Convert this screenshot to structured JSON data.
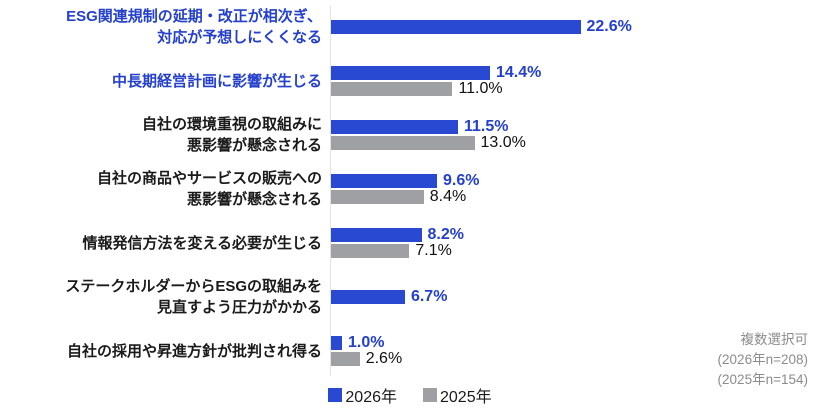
{
  "chart_data": {
    "type": "bar",
    "orientation": "horizontal",
    "title": "",
    "value_suffix": "%",
    "xmax": 25,
    "grid": false,
    "legend_position": "bottom-center",
    "categories": [
      {
        "lines": [
          "ESG関連規制の延期・改正が相次ぎ、",
          "対応が予想しにくくなる"
        ],
        "highlight": true
      },
      {
        "lines": [
          "中長期経営計画に影響が生じる"
        ],
        "highlight": true
      },
      {
        "lines": [
          "自社の環境重視の取組みに",
          "悪影響が懸念される"
        ],
        "highlight": false
      },
      {
        "lines": [
          "自社の商品やサービスの販売への",
          "悪影響が懸念される"
        ],
        "highlight": false
      },
      {
        "lines": [
          "情報発信方法を変える必要が生じる"
        ],
        "highlight": false
      },
      {
        "lines": [
          "ステークホルダーからESGの取組みを",
          "見直すよう圧力がかかる"
        ],
        "highlight": false
      },
      {
        "lines": [
          "自社の採用や昇進方針が批判され得る"
        ],
        "highlight": false
      }
    ],
    "series": [
      {
        "name": "2026年",
        "color": "#2A49D2",
        "values": [
          22.6,
          14.4,
          11.5,
          9.6,
          8.2,
          6.7,
          1.0
        ],
        "value_labels": [
          "22.6%",
          "14.4%",
          "11.5%",
          "9.6%",
          "8.2%",
          "6.7%",
          "1.0%"
        ]
      },
      {
        "name": "2025年",
        "color": "#9FA0A4",
        "values": [
          null,
          11.0,
          13.0,
          8.4,
          7.1,
          null,
          2.6
        ],
        "value_labels": [
          null,
          "11.0%",
          "13.0%",
          "8.4%",
          "7.1%",
          null,
          "2.6%"
        ]
      }
    ],
    "notes": [
      "複数選択可",
      "(2026年n=208)",
      "(2025年n=154)"
    ]
  },
  "legend": {
    "items": [
      {
        "label": "2026年",
        "color": "#2A49D2"
      },
      {
        "label": "2025年",
        "color": "#9FA0A4"
      }
    ]
  },
  "footnote": {
    "lines": [
      "複数選択可",
      "(2026年n=208)",
      "(2025年n=154)"
    ]
  },
  "colors": {
    "bar_2026": "#2A49D2",
    "bar_2025": "#9FA0A4",
    "highlight_label_text": "#2440CC",
    "value_text_2026": "#2440CC",
    "value_text_2025": "#111111",
    "footnote_text": "#8C8C8C",
    "axis_line": "#E2E2E6"
  }
}
